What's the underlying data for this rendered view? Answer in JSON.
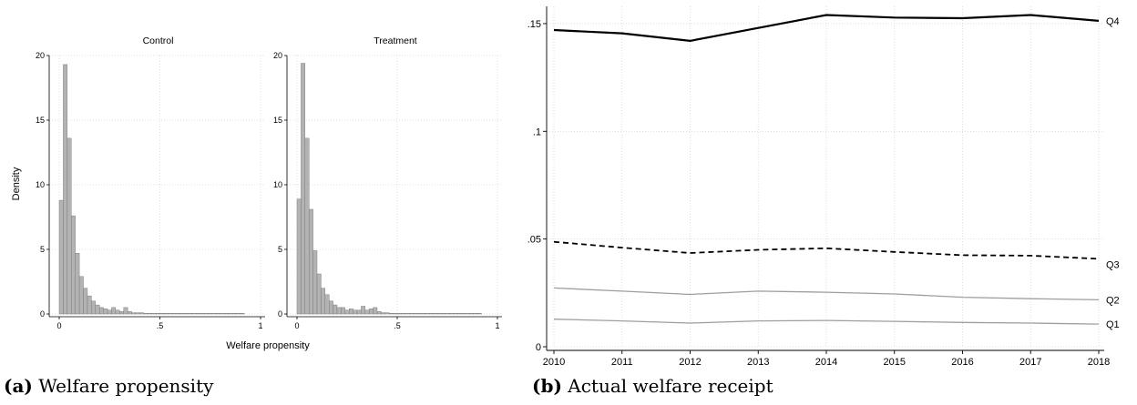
{
  "captions": {
    "a": {
      "label": "(a)",
      "text": "Welfare propensity"
    },
    "b": {
      "label": "(b)",
      "text": "Actual welfare receipt"
    }
  },
  "chart_data": [
    {
      "type": "bar",
      "panels": [
        {
          "title": "Control",
          "bin_width": 0.02,
          "bin_starts": [
            0.0,
            0.02,
            0.04,
            0.06,
            0.08,
            0.1,
            0.12,
            0.14,
            0.16,
            0.18,
            0.2,
            0.22,
            0.24,
            0.26,
            0.28,
            0.3,
            0.32,
            0.34,
            0.36,
            0.38,
            0.4,
            0.42,
            0.44,
            0.46,
            0.48,
            0.5,
            0.52,
            0.54,
            0.56,
            0.58,
            0.6,
            0.62,
            0.64,
            0.66,
            0.68,
            0.7,
            0.72,
            0.74,
            0.76,
            0.78,
            0.8,
            0.82,
            0.84,
            0.86,
            0.88,
            0.9
          ],
          "values": [
            8.8,
            19.3,
            13.6,
            7.6,
            4.7,
            2.9,
            2.0,
            1.4,
            1.0,
            0.7,
            0.5,
            0.4,
            0.3,
            0.5,
            0.3,
            0.2,
            0.5,
            0.2,
            0.1,
            0.1,
            0.1,
            0.05,
            0.05,
            0.05,
            0.05,
            0.05,
            0.05,
            0.05,
            0.05,
            0.05,
            0.05,
            0.05,
            0.05,
            0.05,
            0.05,
            0.05,
            0.05,
            0.05,
            0.05,
            0.05,
            0.05,
            0.05,
            0.05,
            0.05,
            0.05,
            0.05
          ]
        },
        {
          "title": "Treatment",
          "bin_width": 0.02,
          "bin_starts": [
            0.0,
            0.02,
            0.04,
            0.06,
            0.08,
            0.1,
            0.12,
            0.14,
            0.16,
            0.18,
            0.2,
            0.22,
            0.24,
            0.26,
            0.28,
            0.3,
            0.32,
            0.34,
            0.36,
            0.38,
            0.4,
            0.42,
            0.44,
            0.46,
            0.48,
            0.5,
            0.52,
            0.54,
            0.56,
            0.58,
            0.6,
            0.62,
            0.64,
            0.66,
            0.68,
            0.7,
            0.72,
            0.74,
            0.76,
            0.78,
            0.8,
            0.82,
            0.84,
            0.86,
            0.88,
            0.9
          ],
          "values": [
            8.9,
            19.4,
            13.6,
            8.1,
            4.9,
            3.1,
            2.0,
            1.5,
            1.0,
            0.7,
            0.5,
            0.5,
            0.3,
            0.4,
            0.3,
            0.3,
            0.6,
            0.3,
            0.4,
            0.5,
            0.2,
            0.1,
            0.1,
            0.05,
            0.05,
            0.05,
            0.05,
            0.05,
            0.05,
            0.05,
            0.05,
            0.05,
            0.05,
            0.05,
            0.05,
            0.05,
            0.05,
            0.05,
            0.05,
            0.05,
            0.05,
            0.05,
            0.05,
            0.05,
            0.05,
            0.05
          ]
        }
      ],
      "xlabel": "Welfare propensity",
      "ylabel": "Density",
      "xlim": [
        0,
        1
      ],
      "ylim": [
        0,
        20
      ],
      "xticks": [
        "0",
        ".5",
        "1"
      ],
      "yticks": [
        "0",
        "5",
        "10",
        "15",
        "20"
      ],
      "bar_color": "#b3b3b3",
      "grid": true
    },
    {
      "type": "line",
      "x": [
        2010,
        2011,
        2012,
        2013,
        2014,
        2015,
        2016,
        2017,
        2018
      ],
      "series": [
        {
          "name": "Q4",
          "values": [
            0.147,
            0.1455,
            0.142,
            0.148,
            0.154,
            0.1528,
            0.1525,
            0.154,
            0.1513
          ],
          "color": "#000000",
          "style": "solid-thick"
        },
        {
          "name": "Q3",
          "values": [
            0.0487,
            0.046,
            0.0435,
            0.045,
            0.0457,
            0.044,
            0.0425,
            0.0423,
            0.0408
          ],
          "color": "#000000",
          "style": "dashed"
        },
        {
          "name": "Q2",
          "values": [
            0.0273,
            0.0258,
            0.0243,
            0.0258,
            0.0253,
            0.0245,
            0.023,
            0.0223,
            0.0218
          ],
          "color": "#9e9e9e",
          "style": "solid"
        },
        {
          "name": "Q1",
          "values": [
            0.0128,
            0.012,
            0.011,
            0.012,
            0.0122,
            0.0118,
            0.0113,
            0.011,
            0.0105
          ],
          "color": "#9e9e9e",
          "style": "solid"
        }
      ],
      "xlim": [
        2010,
        2018
      ],
      "ylim": [
        0,
        0.158
      ],
      "xticks": [
        "2010",
        "2011",
        "2012",
        "2013",
        "2014",
        "2015",
        "2016",
        "2017",
        "2018"
      ],
      "yticks": [
        {
          "value": 0,
          "label": "0"
        },
        {
          "value": 0.05,
          "label": ".05"
        },
        {
          "value": 0.1,
          "label": ".1"
        },
        {
          "value": 0.15,
          "label": ".15"
        }
      ],
      "grid": true
    }
  ]
}
